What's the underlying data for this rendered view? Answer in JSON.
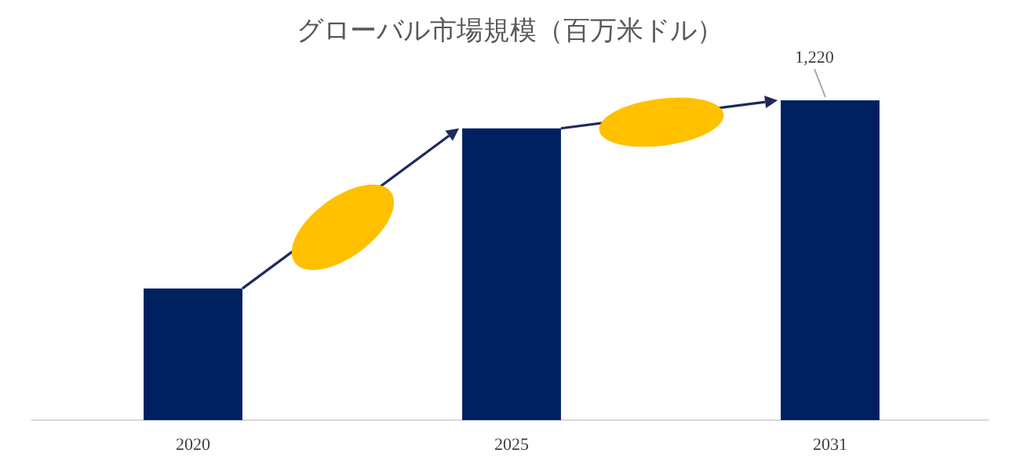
{
  "chart_data": {
    "type": "bar",
    "title": "グローバル市場規模（百万米ドル）",
    "categories": [
      "2020",
      "2025",
      "2031"
    ],
    "values": [
      502,
      1113,
      1220
    ],
    "value_labels": [
      null,
      null,
      "1,220"
    ],
    "color": "#002060"
  }
}
